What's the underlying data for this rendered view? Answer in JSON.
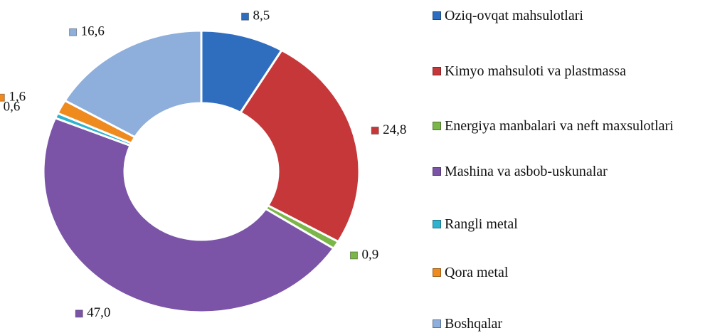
{
  "chart_data": {
    "type": "donut",
    "categories": [
      "Oziq-ovqat mahsulotlari",
      "Kimyo mahsuloti va plastmassa",
      "Energiya manbalari va neft maxsulotlari",
      "Mashina va asbob-uskunalar",
      "Rangli metal",
      "Qora metal",
      "Boshqalar"
    ],
    "values": [
      8.5,
      24.8,
      0.9,
      47.0,
      0.6,
      1.6,
      16.6
    ],
    "value_labels": [
      "8,5",
      "24,8",
      "0,9",
      "47,0",
      "0,6",
      "1,6",
      "16,6"
    ],
    "colors": [
      "#2f6dbf",
      "#c6373a",
      "#7ab648",
      "#7b54a8",
      "#2db3cf",
      "#ef8a1f",
      "#8eaedb"
    ],
    "legend": "right"
  }
}
